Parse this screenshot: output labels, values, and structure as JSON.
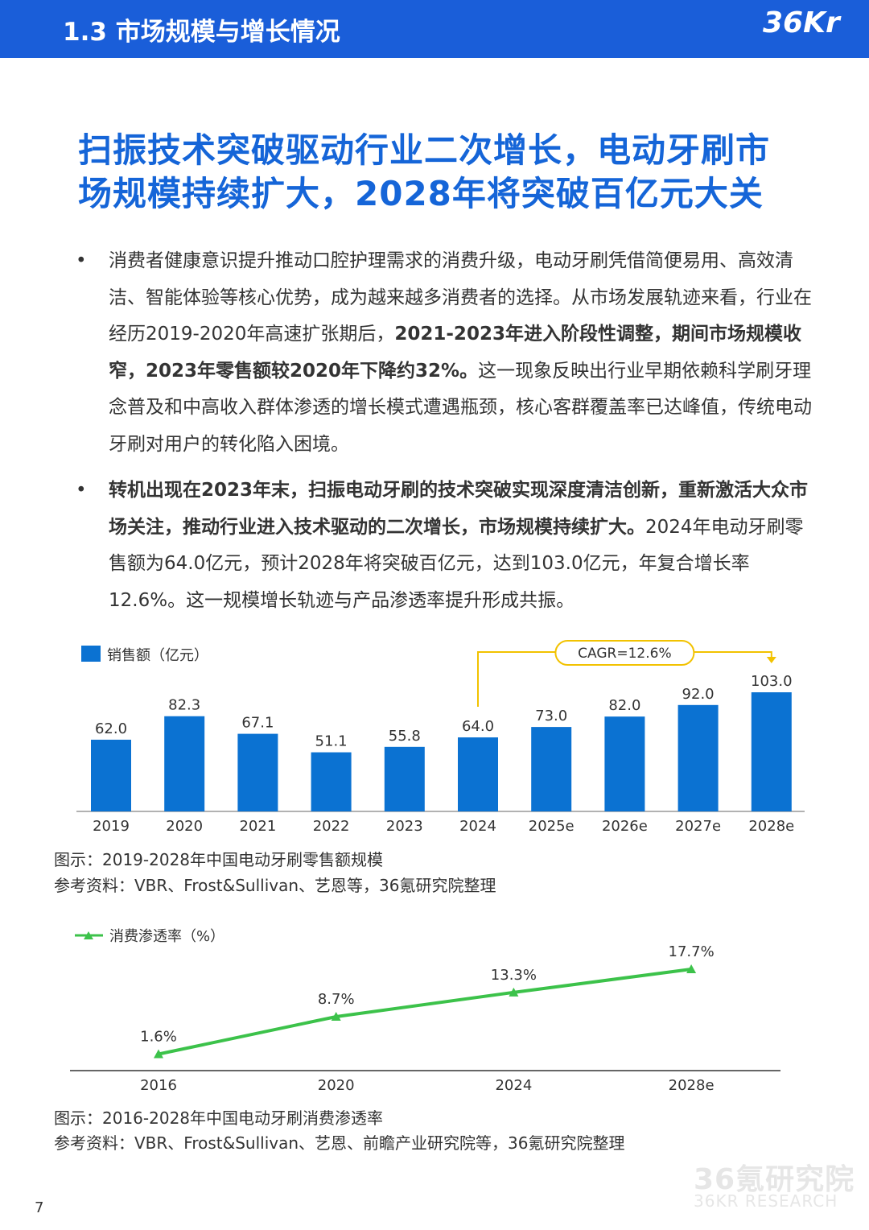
{
  "header": {
    "title": "1.3 市场规模与增长情况",
    "logo_text": "36Kr",
    "bar_color": "#1a5ed9"
  },
  "headline": {
    "line1": "扫振技术突破驱动行业二次增长，电动牙刷市",
    "line2": "场规模持续扩大，2028年将突破百亿元大关"
  },
  "bullets": [
    {
      "parts": [
        {
          "text": "消费者健康意识提升推动口腔护理需求的消费升级，电动牙刷凭借简便易用、高效清洁、智能体验等核心优势，成为越来越多消费者的选择。从市场发展轨迹来看，行业在经历2019-2020年高速扩张期后，",
          "bold": false
        },
        {
          "text": "2021-2023年进入阶段性调整，期间市场规模收窄，2023年零售额较2020年下降约32%。",
          "bold": true
        },
        {
          "text": "这一现象反映出行业早期依赖科学刷牙理念普及和中高收入群体渗透的增长模式遭遇瓶颈，核心客群覆盖率已达峰值，传统电动牙刷对用户的转化陷入困境。",
          "bold": false
        }
      ]
    },
    {
      "parts": [
        {
          "text": "转机出现在2023年末，扫振电动牙刷的技术突破实现深度清洁创新，重新激活大众市场关注，推动行业进入技术驱动的二次增长，市场规模持续扩大。",
          "bold": true
        },
        {
          "text": "2024年电动牙刷零售额为64.0亿元，预计2028年将突破百亿元，达到103.0亿元，年复合增长率12.6%。这一规模增长轨迹与产品渗透率提升形成共振。",
          "bold": false
        }
      ]
    }
  ],
  "chart_data": [
    {
      "type": "bar",
      "categories": [
        "2019",
        "2020",
        "2021",
        "2022",
        "2023",
        "2024",
        "2025e",
        "2026e",
        "2027e",
        "2028e"
      ],
      "series": [
        {
          "name": "销售额（亿元）",
          "values": [
            62.0,
            82.3,
            67.1,
            51.1,
            55.8,
            64.0,
            73.0,
            82.0,
            92.0,
            103.0
          ],
          "color": "#0b72d2"
        }
      ],
      "value_labels": [
        "62.0",
        "82.3",
        "67.1",
        "51.1",
        "55.8",
        "64.0",
        "73.0",
        "82.0",
        "92.0",
        "103.0"
      ],
      "ylim": [
        0,
        103.0
      ],
      "legend": "top-left",
      "annotation": {
        "text": "CAGR=12.6%",
        "from": "2024",
        "to": "2028e",
        "color": "#f2c200"
      },
      "grid": false
    },
    {
      "type": "line",
      "x": [
        "2016",
        "2020",
        "2024",
        "2028e"
      ],
      "series": [
        {
          "name": "消费渗透率（%）",
          "values": [
            1.6,
            8.7,
            13.3,
            17.7
          ],
          "color": "#3cc24a"
        }
      ],
      "value_labels": [
        "1.6%",
        "8.7%",
        "13.3%",
        "17.7%"
      ],
      "ylim": [
        0,
        17.7
      ],
      "legend": "top-left",
      "grid": false
    }
  ],
  "captions": {
    "chart1_title": "图示：2019-2028年中国电动牙刷零售额规模",
    "chart1_source": "参考资料：VBR、Frost&Sullivan、艺恩等，36氪研究院整理",
    "chart2_title": "图示：2016-2028年中国电动牙刷消费渗透率",
    "chart2_source": "参考资料：VBR、Frost&Sullivan、艺恩、前瞻产业研究院等，36氪研究院整理"
  },
  "footer": {
    "page_number": "7",
    "watermark_cn": "36氪研究院",
    "watermark_en": "36KR RESEARCH"
  }
}
